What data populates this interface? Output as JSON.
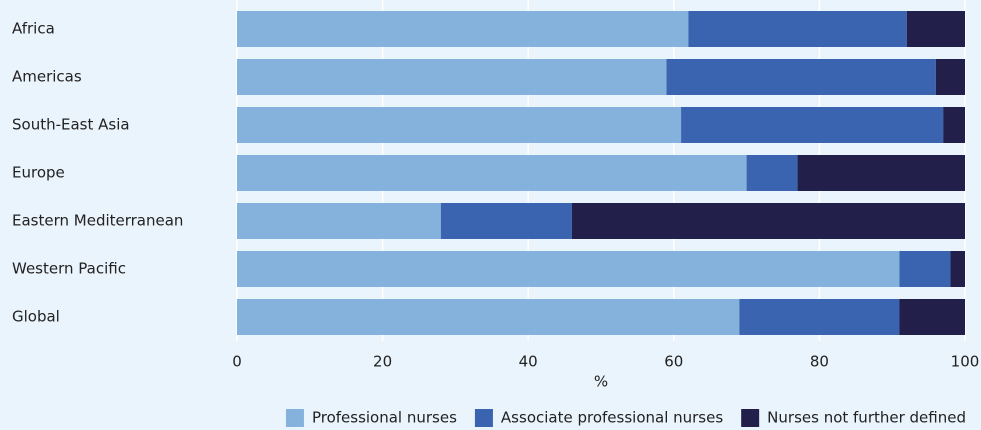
{
  "chart_data": {
    "type": "stacked-bar-horizontal",
    "categories": [
      "Africa",
      "Americas",
      "South-East Asia",
      "Europe",
      "Eastern Mediterranean",
      "Western Pacific",
      "Global"
    ],
    "series": [
      {
        "name": "Professional nurses",
        "color": "#85b1dd",
        "values": [
          62,
          59,
          61,
          70,
          28,
          91,
          69
        ]
      },
      {
        "name": "Associate professional nurses",
        "color": "#3a64b0",
        "values": [
          30,
          37,
          36,
          7,
          18,
          7,
          22
        ]
      },
      {
        "name": "Nurses not further defined",
        "color": "#22204a",
        "values": [
          8,
          4,
          3,
          23,
          54,
          2,
          9
        ]
      }
    ],
    "xlabel": "%",
    "xlim": [
      0,
      100
    ],
    "xticks": [
      0,
      20,
      40,
      60,
      80,
      100
    ],
    "grid": true
  }
}
